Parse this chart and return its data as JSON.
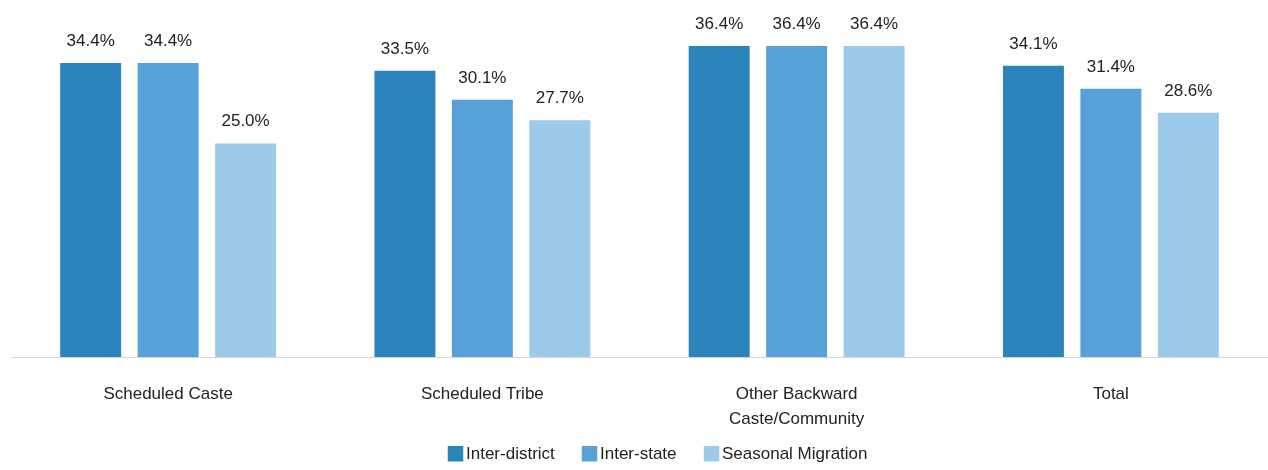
{
  "chart_data": {
    "type": "bar",
    "categories": [
      "Scheduled Caste",
      "Scheduled Tribe",
      "Other Backward Caste/Community",
      "Total"
    ],
    "series": [
      {
        "name": "Inter-district",
        "color": "#2c84bd",
        "values": [
          34.4,
          33.5,
          36.4,
          34.1
        ],
        "value_labels": [
          "34.4%",
          "33.5%",
          "36.4%",
          "34.1%"
        ]
      },
      {
        "name": "Inter-state",
        "color": "#55a1d8",
        "values": [
          34.4,
          30.1,
          36.4,
          31.4
        ],
        "value_labels": [
          "34.4%",
          "30.1%",
          "36.4%",
          "31.4%"
        ]
      },
      {
        "name": "Seasonal Migration",
        "color": "#9ccaea",
        "values": [
          25.0,
          27.7,
          36.4,
          28.6
        ],
        "value_labels": [
          "25.0%",
          "27.7%",
          "36.4%",
          "28.6%"
        ]
      }
    ],
    "legend": "bottom",
    "tick_labels": "x"
  }
}
